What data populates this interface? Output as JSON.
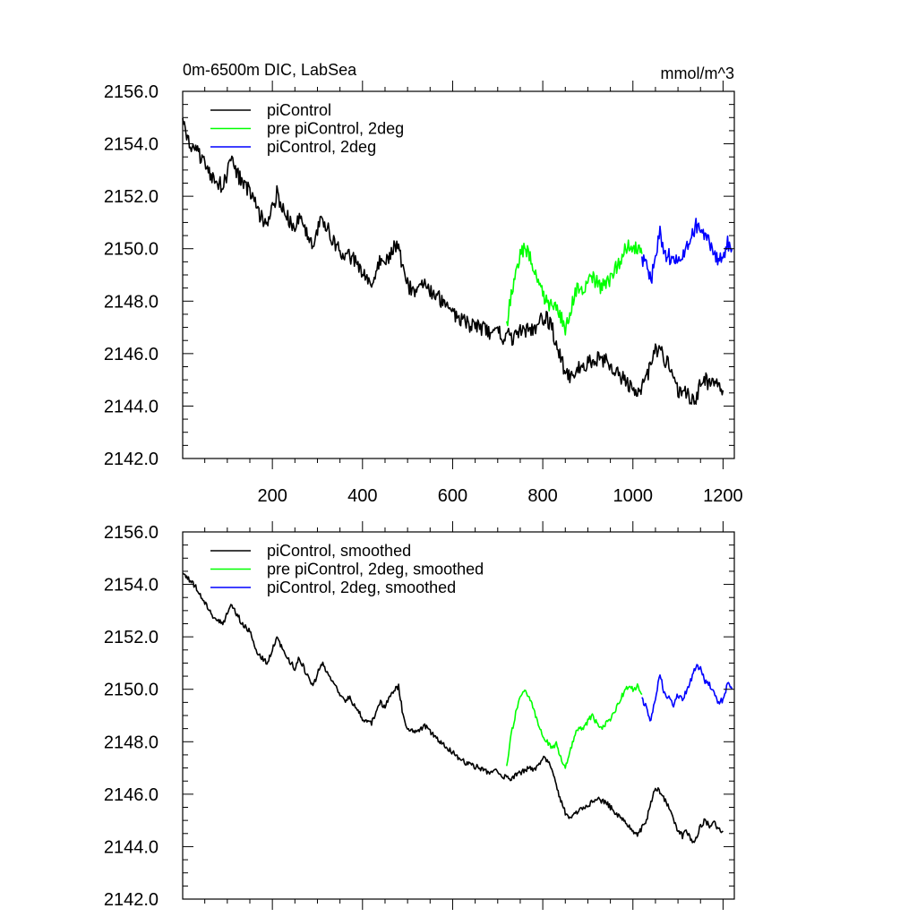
{
  "figure": {
    "title": "0m-6500m DIC, LabSea",
    "units": "mmol/m^3"
  },
  "chart_data": [
    {
      "type": "line",
      "title": "0m-6500m DIC, LabSea",
      "units": "mmol/m^3",
      "xlim": [
        1,
        1225
      ],
      "ylim": [
        2142.0,
        2156.0
      ],
      "x_ticks": [
        200,
        400,
        600,
        800,
        1000,
        1200
      ],
      "x_tick_labels": [
        "200",
        "400",
        "600",
        "800",
        "1000",
        "1200"
      ],
      "y_ticks": [
        2142.0,
        2144.0,
        2146.0,
        2148.0,
        2150.0,
        2152.0,
        2154.0,
        2156.0
      ],
      "y_tick_labels": [
        "2142.0",
        "2144.0",
        "2146.0",
        "2148.0",
        "2150.0",
        "2152.0",
        "2154.0",
        "2156.0"
      ],
      "grid": false,
      "legend": "top-left",
      "series": [
        {
          "name": "piControl",
          "color": "#000000",
          "x": [
            1,
            10,
            30,
            50,
            70,
            90,
            100,
            110,
            130,
            150,
            160,
            170,
            190,
            200,
            210,
            230,
            250,
            260,
            270,
            290,
            300,
            310,
            330,
            350,
            360,
            370,
            390,
            400,
            410,
            420,
            430,
            440,
            450,
            460,
            470,
            480,
            490,
            500,
            520,
            540,
            560,
            580,
            600,
            620,
            640,
            660,
            680,
            700,
            710,
            720,
            730,
            740,
            750,
            760,
            770,
            780,
            790,
            800,
            810,
            820,
            830,
            840,
            850,
            860,
            870,
            880,
            890,
            900,
            920,
            940,
            960,
            980,
            1000,
            1010,
            1020,
            1030,
            1040,
            1050,
            1060,
            1070,
            1080,
            1090,
            1100,
            1110,
            1120,
            1130,
            1140,
            1150,
            1160,
            1170,
            1180,
            1190,
            1200
          ],
          "y": [
            2154.9,
            2154.2,
            2153.8,
            2153.2,
            2152.6,
            2152.4,
            2152.9,
            2153.3,
            2152.6,
            2152.2,
            2151.8,
            2151.3,
            2151.0,
            2151.5,
            2152.1,
            2151.3,
            2150.8,
            2151.3,
            2150.9,
            2150.2,
            2150.7,
            2151.1,
            2150.5,
            2149.9,
            2149.5,
            2149.8,
            2149.3,
            2149.0,
            2148.8,
            2148.7,
            2149.2,
            2149.6,
            2149.4,
            2149.8,
            2150.1,
            2150.3,
            2149.1,
            2148.6,
            2148.4,
            2148.6,
            2148.3,
            2147.9,
            2147.6,
            2147.3,
            2147.1,
            2147.0,
            2146.8,
            2146.9,
            2146.6,
            2146.7,
            2146.6,
            2146.7,
            2146.8,
            2146.9,
            2147.0,
            2146.9,
            2147.1,
            2147.4,
            2147.3,
            2147.0,
            2146.3,
            2145.8,
            2145.3,
            2145.1,
            2145.2,
            2145.4,
            2145.5,
            2145.6,
            2145.8,
            2145.7,
            2145.3,
            2145.0,
            2144.6,
            2144.4,
            2144.7,
            2145.0,
            2145.7,
            2146.2,
            2146.1,
            2145.8,
            2145.5,
            2145.0,
            2144.6,
            2144.4,
            2144.6,
            2144.2,
            2144.3,
            2144.8,
            2145.0,
            2144.8,
            2144.9,
            2144.7,
            2144.6
          ]
        },
        {
          "name": "pre piControl, 2deg",
          "color": "#00ff00",
          "x": [
            720,
            730,
            740,
            750,
            760,
            770,
            780,
            790,
            800,
            810,
            820,
            830,
            840,
            850,
            860,
            870,
            880,
            890,
            900,
            910,
            920,
            930,
            940,
            950,
            960,
            970,
            980,
            990,
            1000,
            1010,
            1020
          ],
          "y": [
            2147.0,
            2148.3,
            2149.1,
            2149.7,
            2150.0,
            2149.7,
            2149.2,
            2148.7,
            2148.2,
            2148.0,
            2147.8,
            2147.9,
            2147.4,
            2147.0,
            2147.6,
            2148.2,
            2148.6,
            2148.5,
            2148.8,
            2149.0,
            2148.7,
            2148.5,
            2148.7,
            2148.9,
            2149.2,
            2149.5,
            2149.9,
            2150.1,
            2150.0,
            2150.1,
            2149.8
          ]
        },
        {
          "name": "piControl, 2deg",
          "color": "#0000ff",
          "x": [
            1020,
            1030,
            1040,
            1050,
            1060,
            1070,
            1080,
            1090,
            1100,
            1110,
            1120,
            1130,
            1140,
            1150,
            1160,
            1170,
            1180,
            1190,
            1200,
            1210,
            1220
          ],
          "y": [
            2149.6,
            2149.3,
            2148.8,
            2149.7,
            2150.6,
            2149.8,
            2149.7,
            2149.4,
            2149.8,
            2149.6,
            2150.0,
            2150.4,
            2150.9,
            2150.8,
            2150.3,
            2150.2,
            2149.8,
            2149.5,
            2149.6,
            2150.2,
            2150.0
          ]
        }
      ]
    },
    {
      "type": "line",
      "xlim": [
        1,
        1225
      ],
      "ylim": [
        2142.0,
        2156.0
      ],
      "y_ticks": [
        2142.0,
        2144.0,
        2146.0,
        2148.0,
        2150.0,
        2152.0,
        2154.0,
        2156.0
      ],
      "y_tick_labels": [
        "2142.0",
        "2144.0",
        "2146.0",
        "2148.0",
        "2150.0",
        "2152.0",
        "2154.0",
        "2156.0"
      ],
      "grid": false,
      "legend": "top-left",
      "series": [
        {
          "name": "piControl, smoothed",
          "color": "#000000",
          "x": [
            1,
            10,
            30,
            50,
            70,
            90,
            100,
            110,
            130,
            150,
            160,
            170,
            190,
            200,
            210,
            230,
            250,
            260,
            270,
            290,
            300,
            310,
            330,
            350,
            360,
            370,
            390,
            400,
            410,
            420,
            430,
            440,
            450,
            460,
            470,
            480,
            490,
            500,
            520,
            540,
            560,
            580,
            600,
            620,
            640,
            660,
            680,
            700,
            710,
            720,
            730,
            740,
            750,
            760,
            770,
            780,
            790,
            800,
            810,
            820,
            830,
            840,
            850,
            860,
            870,
            880,
            890,
            900,
            920,
            940,
            960,
            980,
            1000,
            1010,
            1020,
            1030,
            1040,
            1050,
            1060,
            1070,
            1080,
            1090,
            1100,
            1110,
            1120,
            1130,
            1140,
            1150,
            1160,
            1170,
            1180,
            1190,
            1200
          ],
          "y": [
            2154.5,
            2154.3,
            2153.9,
            2153.3,
            2152.7,
            2152.5,
            2152.9,
            2153.2,
            2152.6,
            2152.2,
            2151.7,
            2151.3,
            2151.0,
            2151.5,
            2152.0,
            2151.3,
            2150.8,
            2151.2,
            2150.8,
            2150.1,
            2150.6,
            2151.0,
            2150.4,
            2149.8,
            2149.5,
            2149.7,
            2149.2,
            2148.9,
            2148.8,
            2148.7,
            2149.1,
            2149.5,
            2149.3,
            2149.7,
            2150.0,
            2150.1,
            2149.0,
            2148.5,
            2148.4,
            2148.6,
            2148.2,
            2147.9,
            2147.6,
            2147.3,
            2147.1,
            2147.0,
            2146.8,
            2146.9,
            2146.6,
            2146.7,
            2146.6,
            2146.7,
            2146.8,
            2146.9,
            2147.0,
            2146.9,
            2147.1,
            2147.4,
            2147.3,
            2147.0,
            2146.3,
            2145.8,
            2145.3,
            2145.1,
            2145.2,
            2145.4,
            2145.5,
            2145.6,
            2145.8,
            2145.7,
            2145.3,
            2145.0,
            2144.6,
            2144.4,
            2144.7,
            2145.0,
            2145.7,
            2146.2,
            2146.1,
            2145.8,
            2145.5,
            2145.0,
            2144.6,
            2144.4,
            2144.6,
            2144.2,
            2144.3,
            2144.8,
            2145.0,
            2144.8,
            2144.9,
            2144.7,
            2144.6
          ]
        },
        {
          "name": "pre piControl, 2deg, smoothed",
          "color": "#00ff00",
          "x": [
            720,
            730,
            740,
            750,
            760,
            770,
            780,
            790,
            800,
            810,
            820,
            830,
            840,
            850,
            860,
            870,
            880,
            890,
            900,
            910,
            920,
            930,
            940,
            950,
            960,
            970,
            980,
            990,
            1000,
            1010,
            1020
          ],
          "y": [
            2147.0,
            2148.3,
            2149.1,
            2149.7,
            2150.0,
            2149.7,
            2149.2,
            2148.7,
            2148.2,
            2148.0,
            2147.8,
            2147.9,
            2147.4,
            2147.0,
            2147.6,
            2148.2,
            2148.6,
            2148.5,
            2148.8,
            2149.0,
            2148.7,
            2148.5,
            2148.7,
            2148.9,
            2149.2,
            2149.5,
            2149.9,
            2150.1,
            2150.0,
            2150.1,
            2149.8
          ]
        },
        {
          "name": "piControl, 2deg, smoothed",
          "color": "#0000ff",
          "x": [
            1020,
            1030,
            1040,
            1050,
            1060,
            1070,
            1080,
            1090,
            1100,
            1110,
            1120,
            1130,
            1140,
            1150,
            1160,
            1170,
            1180,
            1190,
            1200,
            1210,
            1220
          ],
          "y": [
            2149.6,
            2149.3,
            2148.8,
            2149.7,
            2150.6,
            2149.8,
            2149.7,
            2149.4,
            2149.8,
            2149.6,
            2150.0,
            2150.4,
            2150.9,
            2150.8,
            2150.3,
            2150.2,
            2149.8,
            2149.5,
            2149.6,
            2150.2,
            2150.0
          ]
        }
      ]
    }
  ]
}
